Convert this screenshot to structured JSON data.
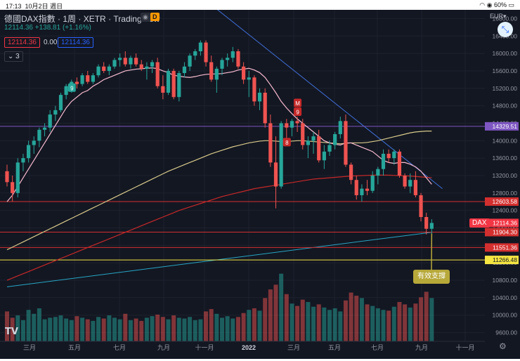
{
  "status_bar": {
    "time": "17:13",
    "date": "10月2日 週日",
    "battery": "60%"
  },
  "header": {
    "symbol": "德國DAX指數",
    "interval": "1周",
    "exchange": "XETR",
    "source": "TradingView",
    "badge": "D",
    "price": "12114.36",
    "change": "+138.81",
    "change_pct": "(+1.16%)",
    "bid": "12114.36",
    "spread": "0.00",
    "ask": "12114.36",
    "indicator_count": "3"
  },
  "currency": "EUR",
  "symbol_tag": "DAX",
  "axis": {
    "price_ticks": [
      "16800.00",
      "16400.00",
      "16000.00",
      "15600.00",
      "15200.00",
      "14800.00",
      "14400.00",
      "14000.00",
      "13600.00",
      "13200.00",
      "12800.00",
      "12400.00",
      "12000.00",
      "11600.00",
      "11200.00",
      "10800.00",
      "10400.00",
      "10000.00",
      "9600.00"
    ],
    "time_ticks": [
      "三月",
      "五月",
      "七月",
      "九月",
      "十一月",
      "2022",
      "三月",
      "五月",
      "七月",
      "九月",
      "十一月"
    ]
  },
  "price_labels": [
    {
      "text": "14329.51",
      "color": "#7e57c2"
    },
    {
      "text": "12603.58",
      "color": "#d32f2f"
    },
    {
      "text": "12114.36",
      "color": "#f23645"
    },
    {
      "text": "11904.30",
      "color": "#d32f2f"
    },
    {
      "text": "11551.36",
      "color": "#d32f2f"
    },
    {
      "text": "11266.48",
      "color": "#f5e642"
    }
  ],
  "annotation": "有效支撐",
  "td_badges": [
    "9",
    "M",
    "9",
    "8"
  ],
  "chart_data": {
    "type": "candlestick",
    "period": "weekly",
    "price_range": [
      9400,
      17000
    ],
    "candles": [
      [
        13300,
        13450,
        12950,
        13050
      ],
      [
        13050,
        13200,
        12600,
        12800
      ],
      [
        12800,
        13600,
        12700,
        13500
      ],
      [
        13500,
        13700,
        13300,
        13600
      ],
      [
        13600,
        14000,
        13500,
        13900
      ],
      [
        13900,
        14100,
        13700,
        14000
      ],
      [
        14000,
        14300,
        13850,
        14250
      ],
      [
        14250,
        14400,
        14100,
        14300
      ],
      [
        14300,
        14700,
        14200,
        14600
      ],
      [
        14600,
        14800,
        14450,
        14700
      ],
      [
        14700,
        15100,
        14650,
        15050
      ],
      [
        15050,
        15300,
        14950,
        15250
      ],
      [
        15250,
        15400,
        15100,
        15350
      ],
      [
        15350,
        15450,
        15200,
        15300
      ],
      [
        15300,
        15550,
        15250,
        15500
      ],
      [
        15500,
        15600,
        15300,
        15350
      ],
      [
        15350,
        15550,
        15300,
        15500
      ],
      [
        15500,
        15750,
        15450,
        15700
      ],
      [
        15700,
        15800,
        15550,
        15600
      ],
      [
        15600,
        15750,
        15500,
        15700
      ],
      [
        15700,
        15900,
        15650,
        15850
      ],
      [
        15850,
        16000,
        15700,
        15900
      ],
      [
        15900,
        16050,
        15700,
        15750
      ],
      [
        15750,
        15950,
        15650,
        15900
      ],
      [
        15900,
        16000,
        15700,
        15750
      ],
      [
        15750,
        15850,
        15600,
        15650
      ],
      [
        15650,
        15800,
        15400,
        15700
      ],
      [
        15700,
        15850,
        15550,
        15800
      ],
      [
        15800,
        15900,
        15200,
        15250
      ],
      [
        15250,
        15500,
        14950,
        15100
      ],
      [
        15100,
        15650,
        15050,
        15600
      ],
      [
        15600,
        15650,
        14950,
        15000
      ],
      [
        15000,
        15600,
        14900,
        15550
      ],
      [
        15550,
        15800,
        15450,
        15700
      ],
      [
        15700,
        16000,
        15600,
        15950
      ],
      [
        15950,
        16100,
        15850,
        16050
      ],
      [
        16050,
        16300,
        15950,
        16250
      ],
      [
        16250,
        16300,
        15700,
        15800
      ],
      [
        15800,
        15950,
        15350,
        15400
      ],
      [
        15400,
        15700,
        15100,
        15650
      ],
      [
        15650,
        15900,
        15500,
        15850
      ],
      [
        15850,
        16000,
        15700,
        15900
      ],
      [
        15900,
        16150,
        15800,
        16050
      ],
      [
        16050,
        16100,
        15650,
        15700
      ],
      [
        15700,
        15800,
        15300,
        15400
      ],
      [
        15400,
        15600,
        15000,
        15450
      ],
      [
        15450,
        15500,
        14800,
        14900
      ],
      [
        14900,
        15200,
        14700,
        15100
      ],
      [
        15100,
        15200,
        14300,
        14400
      ],
      [
        14400,
        14600,
        13400,
        13500
      ],
      [
        13500,
        14100,
        12450,
        12950
      ],
      [
        12950,
        14450,
        12900,
        14400
      ],
      [
        14400,
        14500,
        14000,
        14300
      ],
      [
        14300,
        14500,
        14100,
        14450
      ],
      [
        14450,
        14550,
        14200,
        14400
      ],
      [
        14400,
        14500,
        13800,
        13900
      ],
      [
        13900,
        14100,
        13600,
        14000
      ],
      [
        14000,
        14200,
        13700,
        14100
      ],
      [
        14100,
        14250,
        13500,
        13550
      ],
      [
        13550,
        13900,
        13350,
        13750
      ],
      [
        13750,
        14000,
        13650,
        13900
      ],
      [
        13900,
        14200,
        13800,
        14150
      ],
      [
        14150,
        14550,
        14050,
        14450
      ],
      [
        14450,
        14600,
        13400,
        13450
      ],
      [
        13450,
        13500,
        13000,
        13100
      ],
      [
        13100,
        13200,
        12650,
        12750
      ],
      [
        12750,
        13000,
        12600,
        12900
      ],
      [
        12900,
        13100,
        12750,
        12850
      ],
      [
        12850,
        13300,
        12800,
        13200
      ],
      [
        13200,
        13400,
        13000,
        13350
      ],
      [
        13350,
        13800,
        13200,
        13700
      ],
      [
        13700,
        13800,
        13500,
        13600
      ],
      [
        13600,
        13800,
        13450,
        13750
      ],
      [
        13750,
        13800,
        13150,
        13200
      ],
      [
        13200,
        13250,
        12900,
        12950
      ],
      [
        12950,
        13250,
        12800,
        13100
      ],
      [
        13100,
        13300,
        12700,
        12750
      ],
      [
        12750,
        12800,
        12150,
        12250
      ],
      [
        12250,
        12350,
        11850,
        11980
      ],
      [
        11980,
        12200,
        11850,
        12114.36
      ]
    ],
    "volume_scale": [
      0,
      100
    ],
    "volumes": [
      38,
      30,
      33,
      27,
      40,
      35,
      42,
      28,
      30,
      31,
      33,
      29,
      27,
      32,
      30,
      28,
      26,
      31,
      29,
      33,
      30,
      28,
      35,
      27,
      29,
      26,
      30,
      32,
      34,
      31,
      28,
      33,
      30,
      29,
      31,
      27,
      28,
      38,
      41,
      35,
      30,
      32,
      29,
      31,
      36,
      40,
      42,
      39,
      55,
      66,
      72,
      86,
      60,
      48,
      45,
      53,
      50,
      44,
      47,
      43,
      40,
      42,
      38,
      52,
      62,
      58,
      55,
      47,
      45,
      42,
      40,
      39,
      44,
      50,
      47,
      43,
      48,
      56,
      63,
      55
    ],
    "ma_fast": [
      12600,
      12750,
      12950,
      13150,
      13350,
      13550,
      13750,
      13950,
      14150,
      14350,
      14550,
      14750,
      14900,
      15000,
      15100,
      15150,
      15250,
      15320,
      15400,
      15450,
      15500,
      15550,
      15600,
      15620,
      15640,
      15650,
      15660,
      15670,
      15650,
      15600,
      15560,
      15500,
      15480,
      15460,
      15450,
      15470,
      15500,
      15520,
      15530,
      15530,
      15540,
      15560,
      15580,
      15620,
      15640,
      15660,
      15620,
      15560,
      15450,
      15280,
      15100,
      14900,
      14750,
      14620,
      14500,
      14400,
      14300,
      14200,
      14100,
      14000,
      13950,
      13920,
      13900,
      13950,
      13950,
      13900,
      13850,
      13800,
      13750,
      13650,
      13550,
      13500,
      13480,
      13500,
      13500,
      13460,
      13400,
      13300,
      13150,
      13000
    ],
    "ma_mid": [
      11500,
      11560,
      11620,
      11680,
      11740,
      11800,
      11860,
      11920,
      11980,
      12040,
      12100,
      12160,
      12220,
      12280,
      12340,
      12400,
      12460,
      12520,
      12580,
      12640,
      12700,
      12760,
      12820,
      12880,
      12940,
      13000,
      13060,
      13120,
      13180,
      13240,
      13300,
      13350,
      13400,
      13450,
      13500,
      13550,
      13600,
      13650,
      13700,
      13740,
      13780,
      13820,
      13860,
      13890,
      13920,
      13950,
      13970,
      13990,
      14000,
      14000,
      13990,
      13980,
      13980,
      13990,
      14000,
      14000,
      13990,
      13980,
      13970,
      13960,
      13950,
      13940,
      13930,
      13940,
      13950,
      13950,
      13950,
      13960,
      13980,
      14000,
      14030,
      14060,
      14090,
      14120,
      14150,
      14180,
      14200,
      14210,
      14220,
      14220
    ],
    "ma_slow": [
      10800,
      10850,
      10900,
      10950,
      11000,
      11050,
      11100,
      11150,
      11200,
      11250,
      11300,
      11350,
      11400,
      11450,
      11500,
      11550,
      11600,
      11650,
      11700,
      11750,
      11800,
      11850,
      11900,
      11950,
      12000,
      12050,
      12100,
      12150,
      12200,
      12250,
      12300,
      12350,
      12400,
      12440,
      12480,
      12520,
      12560,
      12600,
      12640,
      12680,
      12720,
      12750,
      12780,
      12810,
      12840,
      12870,
      12900,
      12920,
      12940,
      12960,
      12980,
      13000,
      13020,
      13040,
      13060,
      13080,
      13100,
      13120,
      13130,
      13140,
      13150,
      13160,
      13170,
      13180,
      13190,
      13195,
      13200,
      13205,
      13210,
      13210,
      13210,
      13210,
      13205,
      13200,
      13195,
      13190,
      13180,
      13170,
      13160,
      13150
    ],
    "trendline_down": {
      "from": [
        30,
        17900
      ],
      "to": [
        81,
        12900
      ]
    },
    "trendline_up": {
      "from": [
        0,
        10650
      ],
      "to": [
        79,
        11900
      ]
    },
    "horizontal_levels": [
      {
        "price": 14329.51,
        "color": "#7e57c2"
      },
      {
        "price": 12603.58,
        "color": "#d32f2f"
      },
      {
        "price": 11904.3,
        "color": "#d32f2f"
      },
      {
        "price": 11551.36,
        "color": "#d32f2f"
      },
      {
        "price": 11266.48,
        "color": "#f5e642"
      }
    ],
    "colors": {
      "up": "#26a69a",
      "down": "#ef5350",
      "ma_fast": "#f8bbd0",
      "ma_mid": "#d7c98a",
      "ma_slow": "#c62828",
      "trend_down": "#3f6fd8",
      "trend_up": "#26a6c4"
    }
  }
}
